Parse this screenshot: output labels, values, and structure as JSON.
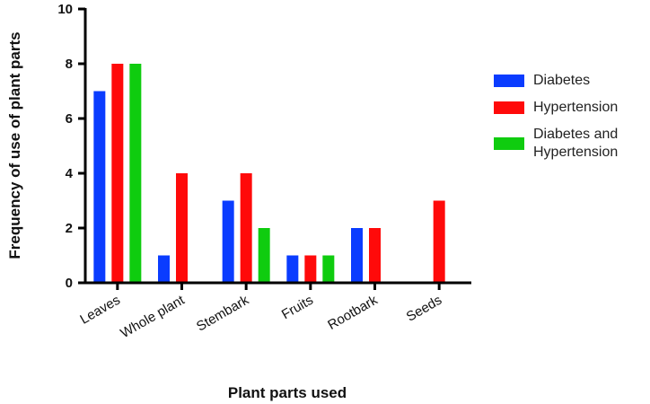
{
  "chart_data": {
    "type": "bar",
    "x_label": "Plant parts used",
    "y_label": "Frequency of use of plant parts",
    "categories": [
      "Leaves",
      "Whole plant",
      "Stembark",
      "Fruits",
      "Rootbark",
      "Seeds"
    ],
    "series": [
      {
        "name": "Diabetes",
        "color": "#0a3cff",
        "values": [
          7,
          1,
          3,
          1,
          2,
          0
        ]
      },
      {
        "name": "Hypertension",
        "color": "#ff0a0a",
        "values": [
          8,
          4,
          4,
          1,
          2,
          3
        ]
      },
      {
        "name": "Diabetes and Hypertension",
        "color": "#0fcc0f",
        "values": [
          8,
          0,
          2,
          1,
          0,
          0
        ]
      }
    ],
    "ylim": [
      0,
      10
    ],
    "yticks": [
      0,
      2,
      4,
      6,
      8,
      10
    ],
    "legend": "right"
  }
}
